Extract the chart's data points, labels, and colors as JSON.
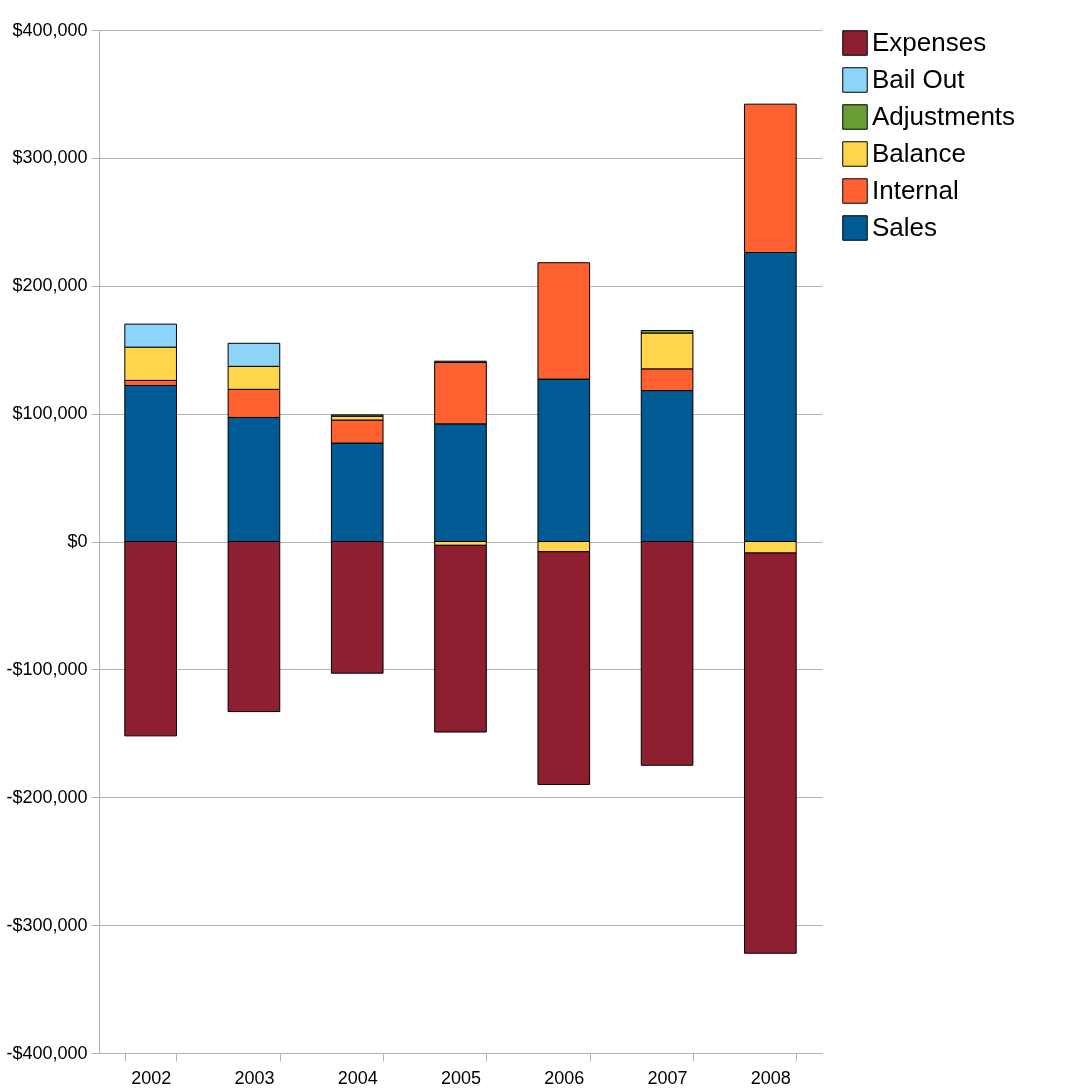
{
  "chart_data": {
    "type": "bar",
    "stacked": true,
    "categories": [
      "2002",
      "2003",
      "2004",
      "2005",
      "2006",
      "2007",
      "2008"
    ],
    "series": [
      {
        "name": "Sales",
        "color": "#005a94",
        "values": [
          122000,
          97000,
          77000,
          92000,
          127000,
          118000,
          226000
        ]
      },
      {
        "name": " Internal",
        "color": "#ff6230",
        "values": [
          4000,
          22000,
          18000,
          48000,
          91000,
          17000,
          116000
        ]
      },
      {
        "name": "Balance",
        "color": "#ffd54a",
        "values": [
          26000,
          18000,
          3000,
          -3000,
          -8000,
          28000,
          -9000
        ]
      },
      {
        "name": "Adjustments",
        "color": "#6a9e34",
        "values": [
          null,
          null,
          1000,
          1000,
          null,
          2000,
          null
        ]
      },
      {
        "name": "Bail Out",
        "color": "#8dd4fb",
        "values": [
          18000,
          18000,
          null,
          null,
          null,
          null,
          null
        ]
      },
      {
        "name": "Expenses",
        "color": "#8e1f30",
        "values": [
          -152000,
          -133000,
          -103000,
          -146000,
          -182000,
          -175000,
          -313000
        ]
      }
    ],
    "ylim": [
      -400000,
      400000
    ],
    "yticks": [
      {
        "value": -400000,
        "label": "-$400,000"
      },
      {
        "value": -300000,
        "label": "-$300,000"
      },
      {
        "value": -200000,
        "label": "-$200,000"
      },
      {
        "value": -100000,
        "label": "-$100,000"
      },
      {
        "value": 0,
        "label": "$0"
      },
      {
        "value": 100000,
        "label": "$100,000"
      },
      {
        "value": 200000,
        "label": "$200,000"
      },
      {
        "value": 300000,
        "label": "$300,000"
      },
      {
        "value": 400000,
        "label": "$400,000"
      }
    ],
    "grid": "y",
    "legend": "right"
  }
}
